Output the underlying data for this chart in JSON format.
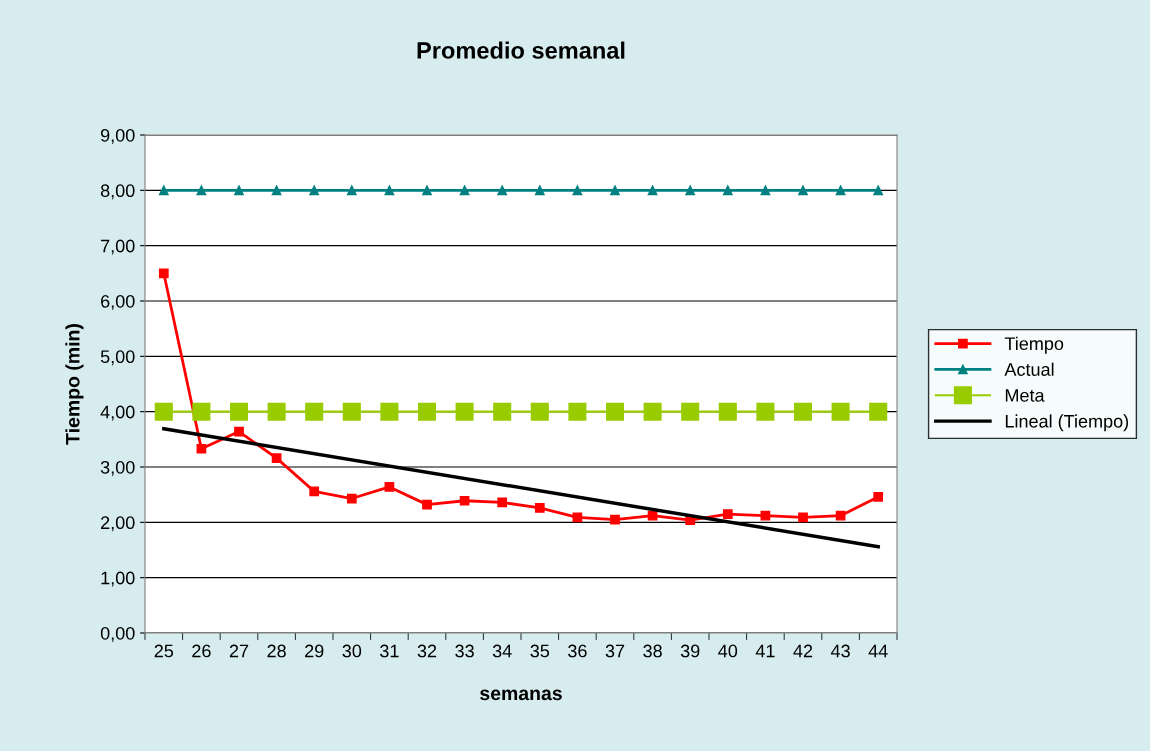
{
  "chart_data": {
    "type": "line",
    "title": "Promedio semanal",
    "xlabel": "semanas",
    "ylabel": "Tiempo (min)",
    "categories": [
      "25",
      "26",
      "27",
      "28",
      "29",
      "30",
      "31",
      "32",
      "33",
      "34",
      "35",
      "36",
      "37",
      "38",
      "39",
      "40",
      "41",
      "42",
      "43",
      "44"
    ],
    "series": [
      {
        "name": "Tiempo",
        "color": "#ff0000",
        "marker": "square",
        "values": [
          6.5,
          3.33,
          3.64,
          3.16,
          2.56,
          2.43,
          2.64,
          2.32,
          2.39,
          2.36,
          2.26,
          2.09,
          2.05,
          2.12,
          2.04,
          2.15,
          2.12,
          2.09,
          2.12,
          2.46
        ]
      },
      {
        "name": "Actual",
        "color": "#008080",
        "marker": "triangle",
        "values": [
          8,
          8,
          8,
          8,
          8,
          8,
          8,
          8,
          8,
          8,
          8,
          8,
          8,
          8,
          8,
          8,
          8,
          8,
          8,
          8
        ]
      },
      {
        "name": "Meta",
        "color": "#99cc00",
        "marker": "square",
        "values": [
          4,
          4,
          4,
          4,
          4,
          4,
          4,
          4,
          4,
          4,
          4,
          4,
          4,
          4,
          4,
          4,
          4,
          4,
          4,
          4
        ]
      },
      {
        "name": "Lineal (Tiempo)",
        "color": "#000000",
        "marker": "none",
        "x": [
          "25",
          "44"
        ],
        "values": [
          3.69,
          1.56
        ]
      }
    ],
    "ylim": [
      0,
      9
    ],
    "yticks": [
      {
        "value": 0,
        "label": "0,00"
      },
      {
        "value": 1,
        "label": "1,00"
      },
      {
        "value": 2,
        "label": "2,00"
      },
      {
        "value": 3,
        "label": "3,00"
      },
      {
        "value": 4,
        "label": "4,00"
      },
      {
        "value": 5,
        "label": "5,00"
      },
      {
        "value": 6,
        "label": "6,00"
      },
      {
        "value": 7,
        "label": "7,00"
      },
      {
        "value": 8,
        "label": "8,00"
      },
      {
        "value": 9,
        "label": "9,00"
      }
    ],
    "grid": "y",
    "legend": "right",
    "line_style": "solid"
  }
}
